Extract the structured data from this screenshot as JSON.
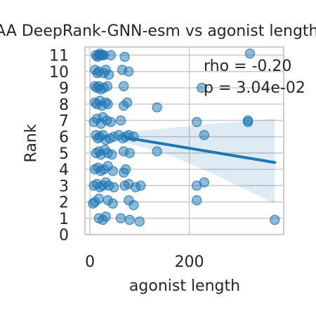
{
  "chart_data": {
    "type": "scatter",
    "title": "FAA DeepRank-GNN-esm vs agonist length",
    "xlabel": "agonist length",
    "ylabel": "Rank",
    "xlim": [
      -10,
      390
    ],
    "ylim": [
      0,
      11.5
    ],
    "xticks": [
      0,
      200
    ],
    "yticks": [
      0,
      1,
      2,
      3,
      4,
      5,
      6,
      7,
      8,
      9,
      10,
      11
    ],
    "grid": true,
    "annotations": [
      "rho = -0.20",
      "p = 3.04e-02"
    ],
    "colors": {
      "points": "#1f77b4",
      "line": "#1f77b4",
      "band": "#1f77b4",
      "grid": "#cccccc",
      "spine": "#cccccc"
    },
    "regression": {
      "x": [
        75,
        372
      ],
      "y": [
        5.93,
        4.42
      ]
    },
    "confidence_band": {
      "upper": [
        [
          75,
          6.3
        ],
        [
          150,
          6.5
        ],
        [
          250,
          6.8
        ],
        [
          372,
          7.1
        ]
      ],
      "lower": [
        [
          75,
          5.6
        ],
        [
          150,
          5.0
        ],
        [
          250,
          3.7
        ],
        [
          372,
          1.9
        ]
      ]
    },
    "points": [
      [
        12,
        11
      ],
      [
        18,
        11
      ],
      [
        22,
        11
      ],
      [
        28,
        11
      ],
      [
        15,
        10.9
      ],
      [
        20,
        11.1
      ],
      [
        25,
        11.0
      ],
      [
        42,
        11.0
      ],
      [
        70,
        10.9
      ],
      [
        10,
        10.1
      ],
      [
        15,
        9.9
      ],
      [
        18,
        10.0
      ],
      [
        28,
        9.9
      ],
      [
        32,
        10.1
      ],
      [
        38,
        9.8
      ],
      [
        65,
        10.1
      ],
      [
        78,
        10.0
      ],
      [
        10,
        9.1
      ],
      [
        14,
        9.0
      ],
      [
        18,
        9.1
      ],
      [
        22,
        8.9
      ],
      [
        28,
        9.0
      ],
      [
        35,
        9.1
      ],
      [
        68,
        9.1
      ],
      [
        10,
        8.1
      ],
      [
        14,
        8.0
      ],
      [
        20,
        8.2
      ],
      [
        24,
        7.9
      ],
      [
        32,
        8.1
      ],
      [
        36,
        8.0
      ],
      [
        68,
        7.9
      ],
      [
        75,
        8.1
      ],
      [
        135,
        7.8
      ],
      [
        8,
        6.9
      ],
      [
        14,
        7.1
      ],
      [
        22,
        6.8
      ],
      [
        26,
        7.2
      ],
      [
        34,
        7.0
      ],
      [
        42,
        6.9
      ],
      [
        62,
        7.0
      ],
      [
        12,
        6.1
      ],
      [
        16,
        5.9
      ],
      [
        20,
        6.0
      ],
      [
        26,
        6.1
      ],
      [
        32,
        5.8
      ],
      [
        40,
        5.9
      ],
      [
        48,
        6.0
      ],
      [
        58,
        6.1
      ],
      [
        66,
        5.9
      ],
      [
        72,
        6.0
      ],
      [
        78,
        6.1
      ],
      [
        88,
        6.0
      ],
      [
        12,
        5.0
      ],
      [
        18,
        5.1
      ],
      [
        22,
        4.9
      ],
      [
        30,
        5.2
      ],
      [
        36,
        5.0
      ],
      [
        44,
        4.9
      ],
      [
        68,
        5.1
      ],
      [
        80,
        5.0
      ],
      [
        135,
        5.1
      ],
      [
        10,
        4.0
      ],
      [
        16,
        4.1
      ],
      [
        22,
        3.9
      ],
      [
        28,
        4.0
      ],
      [
        36,
        4.2
      ],
      [
        46,
        3.9
      ],
      [
        68,
        3.8
      ],
      [
        72,
        4.0
      ],
      [
        8,
        3.0
      ],
      [
        14,
        3.1
      ],
      [
        20,
        2.9
      ],
      [
        26,
        3.0
      ],
      [
        32,
        3.2
      ],
      [
        38,
        3.0
      ],
      [
        48,
        2.9
      ],
      [
        70,
        3.0
      ],
      [
        78,
        3.1
      ],
      [
        92,
        2.9
      ],
      [
        102,
        3.0
      ],
      [
        215,
        3.0
      ],
      [
        230,
        3.2
      ],
      [
        6,
        1.9
      ],
      [
        10,
        2.0
      ],
      [
        18,
        2.2
      ],
      [
        36,
        2.1
      ],
      [
        46,
        1.9
      ],
      [
        78,
        2.1
      ],
      [
        88,
        1.8
      ],
      [
        215,
        2.1
      ],
      [
        18,
        1.0
      ],
      [
        26,
        0.9
      ],
      [
        32,
        1.1
      ],
      [
        62,
        1.0
      ],
      [
        80,
        0.9
      ],
      [
        100,
        0.8
      ],
      [
        372,
        0.9
      ],
      [
        215,
        6.9
      ],
      [
        230,
        6.1
      ],
      [
        318,
        7.0
      ],
      [
        318,
        6.9
      ],
      [
        322,
        11.1
      ],
      [
        225,
        9.0
      ]
    ]
  }
}
